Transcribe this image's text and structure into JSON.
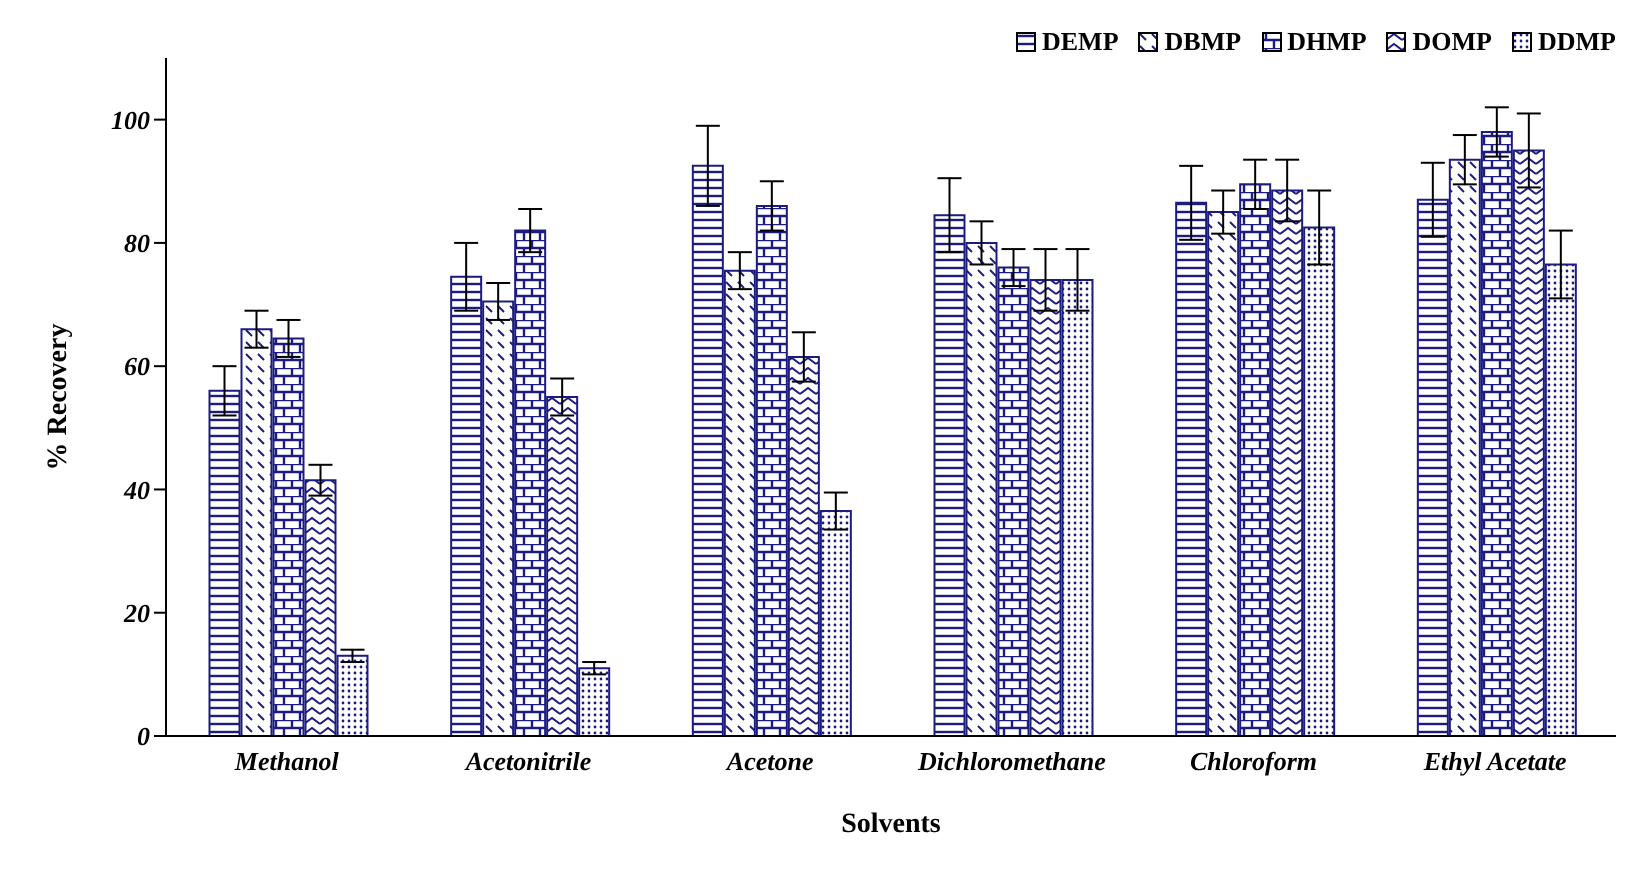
{
  "chart_data": {
    "type": "bar",
    "xlabel": "Solvents",
    "ylabel": "% Recovery",
    "categories": [
      "Methanol",
      "Acetonitrile",
      "Acetone",
      "Dichloromethane",
      "Chloroform",
      "Ethyl Acetate"
    ],
    "series": [
      {
        "name": "DEMP",
        "color": "#1c1c80",
        "values": [
          56,
          74.5,
          92.5,
          84.5,
          86.5,
          87
        ],
        "errors": [
          4,
          5.5,
          6.5,
          6,
          6,
          6
        ]
      },
      {
        "name": "DBMP",
        "color": "#1c1c80",
        "values": [
          66,
          70.5,
          75.5,
          80,
          85,
          93.5
        ],
        "errors": [
          3,
          3,
          3,
          3.5,
          3.5,
          4
        ]
      },
      {
        "name": "DHMP",
        "color": "#1c1c80",
        "values": [
          64.5,
          82,
          86,
          76,
          89.5,
          98
        ],
        "errors": [
          3,
          3.5,
          4,
          3,
          4,
          4
        ]
      },
      {
        "name": "DOMP",
        "color": "#1c1c80",
        "values": [
          41.5,
          55,
          61.5,
          74,
          88.5,
          95
        ],
        "errors": [
          2.5,
          3,
          4,
          5,
          5,
          6
        ]
      },
      {
        "name": "DDMP",
        "color": "#1c1c80",
        "values": [
          13,
          11,
          36.5,
          74,
          82.5,
          76.5
        ],
        "errors": [
          1,
          1,
          3,
          5,
          6,
          5.5
        ]
      }
    ],
    "ylim": [
      0,
      110
    ],
    "yticks": [
      0,
      20,
      40,
      60,
      80,
      100
    ],
    "grid": false,
    "legend": "top right"
  }
}
